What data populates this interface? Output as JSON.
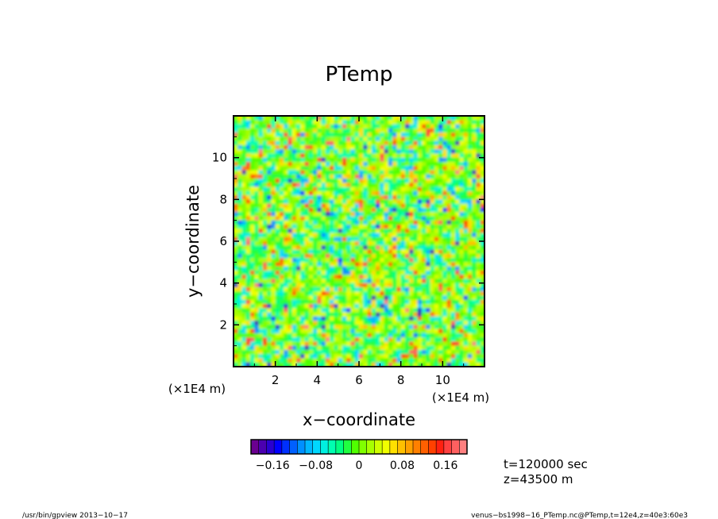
{
  "chart_data": {
    "type": "heatmap",
    "title": "PTemp",
    "xlabel": "x−coordinate",
    "ylabel": "y−coordinate",
    "x_unit_label": "(×1E4 m)",
    "y_unit_label": "(×1E4 m)",
    "xlim": [
      0,
      12
    ],
    "ylim": [
      0,
      12
    ],
    "x_ticks": [
      2,
      4,
      6,
      8,
      10
    ],
    "y_ticks": [
      2,
      4,
      6,
      8,
      10
    ],
    "colorbar": {
      "range": [
        -0.2,
        0.2
      ],
      "ticks": [
        -0.16,
        -0.08,
        0,
        0.08,
        0.16
      ],
      "tick_labels": [
        "−0.16",
        "−0.08",
        "0",
        "0.08",
        "0.16"
      ],
      "colors": [
        "#6a0090",
        "#4b00b0",
        "#2a00d0",
        "#0000ff",
        "#0030ff",
        "#0060ff",
        "#0090ff",
        "#00b8ff",
        "#00d8ff",
        "#00f0e0",
        "#00ffb0",
        "#00ff80",
        "#20ff40",
        "#50ff00",
        "#80ff00",
        "#a8ff00",
        "#d0ff00",
        "#f0ff00",
        "#ffe000",
        "#ffc000",
        "#ffa000",
        "#ff8000",
        "#ff6000",
        "#ff4000",
        "#ff2010",
        "#ff4040",
        "#ff6060",
        "#ff8080"
      ]
    }
  },
  "info": {
    "time": "t=120000 sec",
    "height": "z=43500 m"
  },
  "footer": {
    "left": "/usr/bin/gpview   2013−10−17",
    "right": "venus−bs1998−16_PTemp.nc@PTemp,t=12e4,z=40e3:60e3"
  }
}
